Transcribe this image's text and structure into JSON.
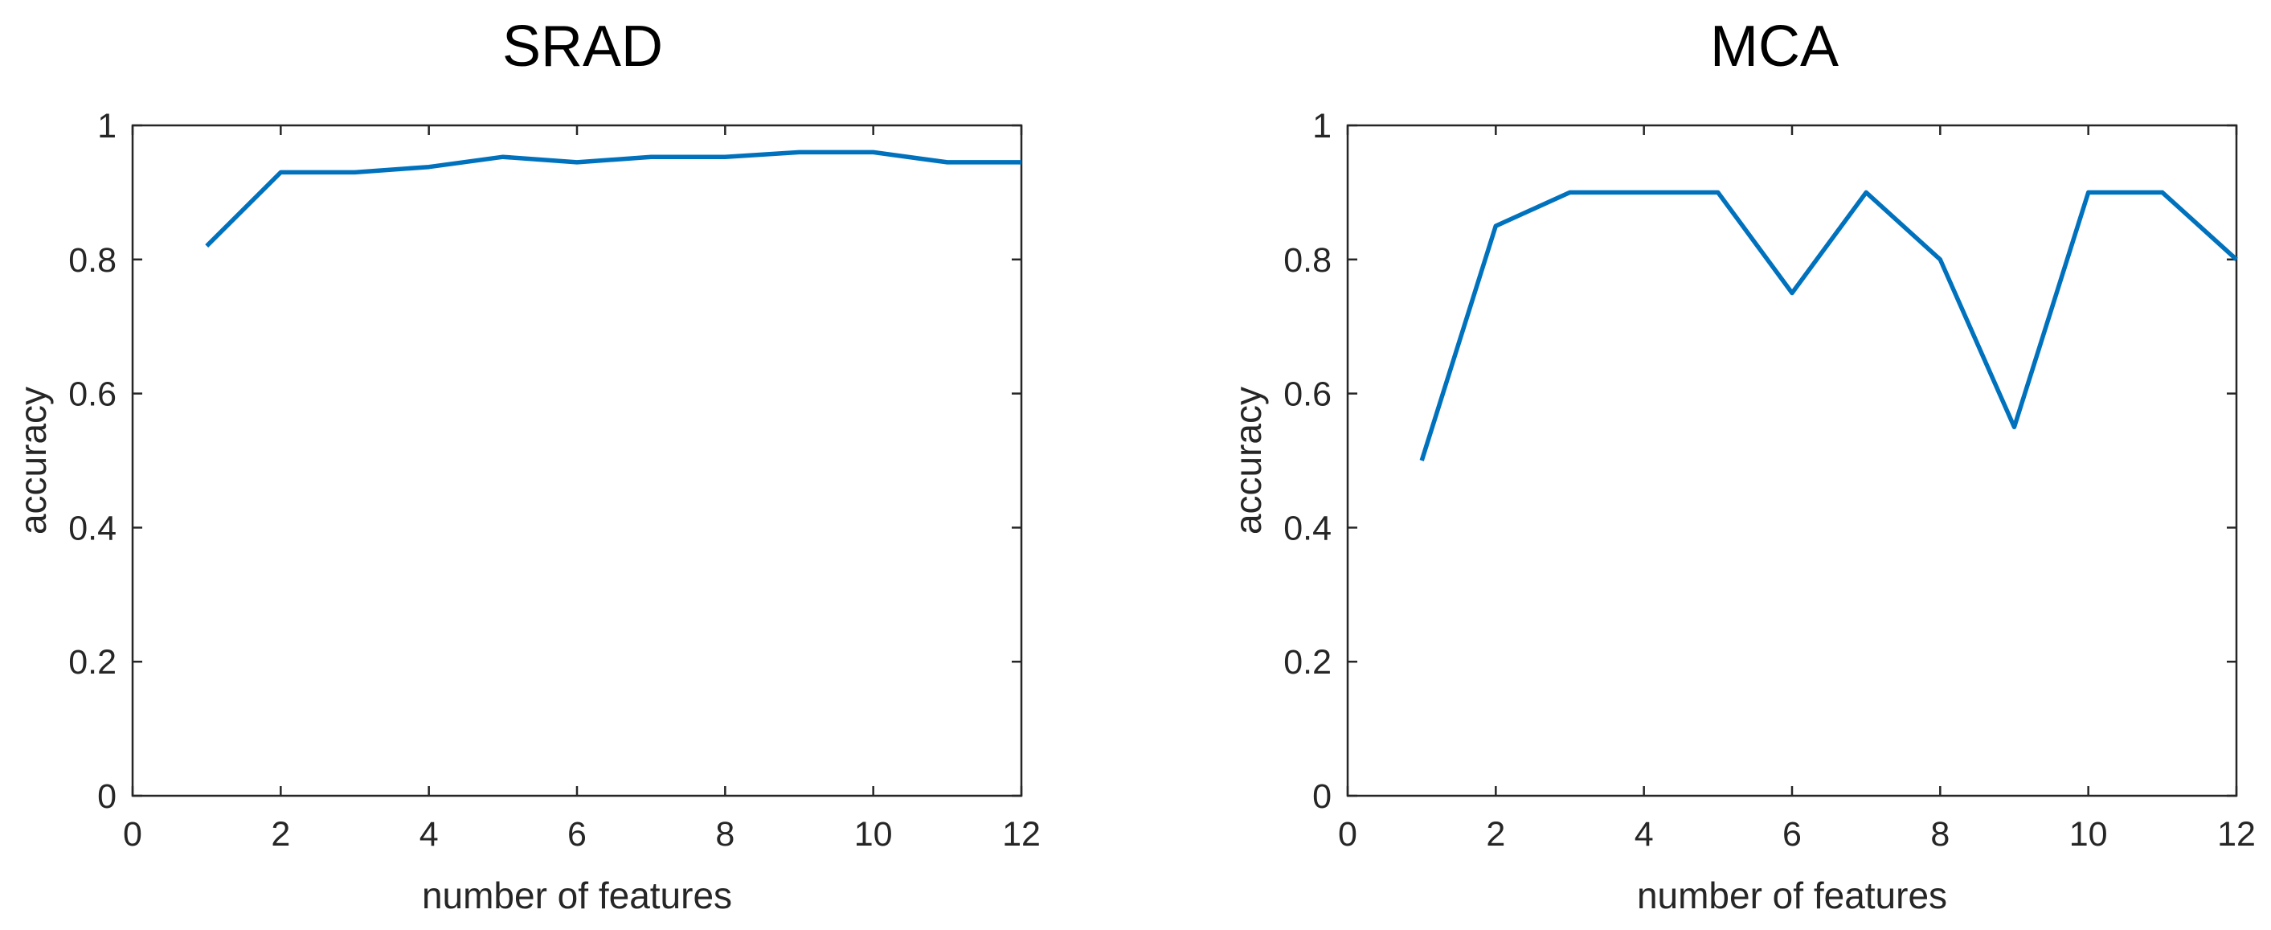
{
  "chart_data": [
    {
      "type": "line",
      "title": "SRAD",
      "xlabel": "number of features",
      "ylabel": "accuracy",
      "xlim": [
        0,
        12
      ],
      "ylim": [
        0,
        1
      ],
      "xticks": [
        0,
        2,
        4,
        6,
        8,
        10,
        12
      ],
      "yticks": [
        0,
        0.2,
        0.4,
        0.6,
        0.8,
        1
      ],
      "grid": false,
      "series": [
        {
          "color": "#0072BD",
          "x": [
            1,
            2,
            3,
            4,
            5,
            6,
            7,
            8,
            9,
            10,
            11,
            12
          ],
          "y": [
            0.82,
            0.93,
            0.93,
            0.938,
            0.953,
            0.945,
            0.953,
            0.953,
            0.96,
            0.96,
            0.945,
            0.945
          ]
        }
      ]
    },
    {
      "type": "line",
      "title": "MCA",
      "xlabel": "number of features",
      "ylabel": "accuracy",
      "xlim": [
        0,
        12
      ],
      "ylim": [
        0,
        1
      ],
      "xticks": [
        0,
        2,
        4,
        6,
        8,
        10,
        12
      ],
      "yticks": [
        0,
        0.2,
        0.4,
        0.6,
        0.8,
        1
      ],
      "grid": false,
      "series": [
        {
          "color": "#0072BD",
          "x": [
            1,
            2,
            3,
            4,
            5,
            6,
            7,
            8,
            9,
            10,
            11,
            12
          ],
          "y": [
            0.5,
            0.85,
            0.9,
            0.9,
            0.9,
            0.75,
            0.9,
            0.8,
            0.55,
            0.9,
            0.9,
            0.8
          ]
        }
      ]
    }
  ]
}
